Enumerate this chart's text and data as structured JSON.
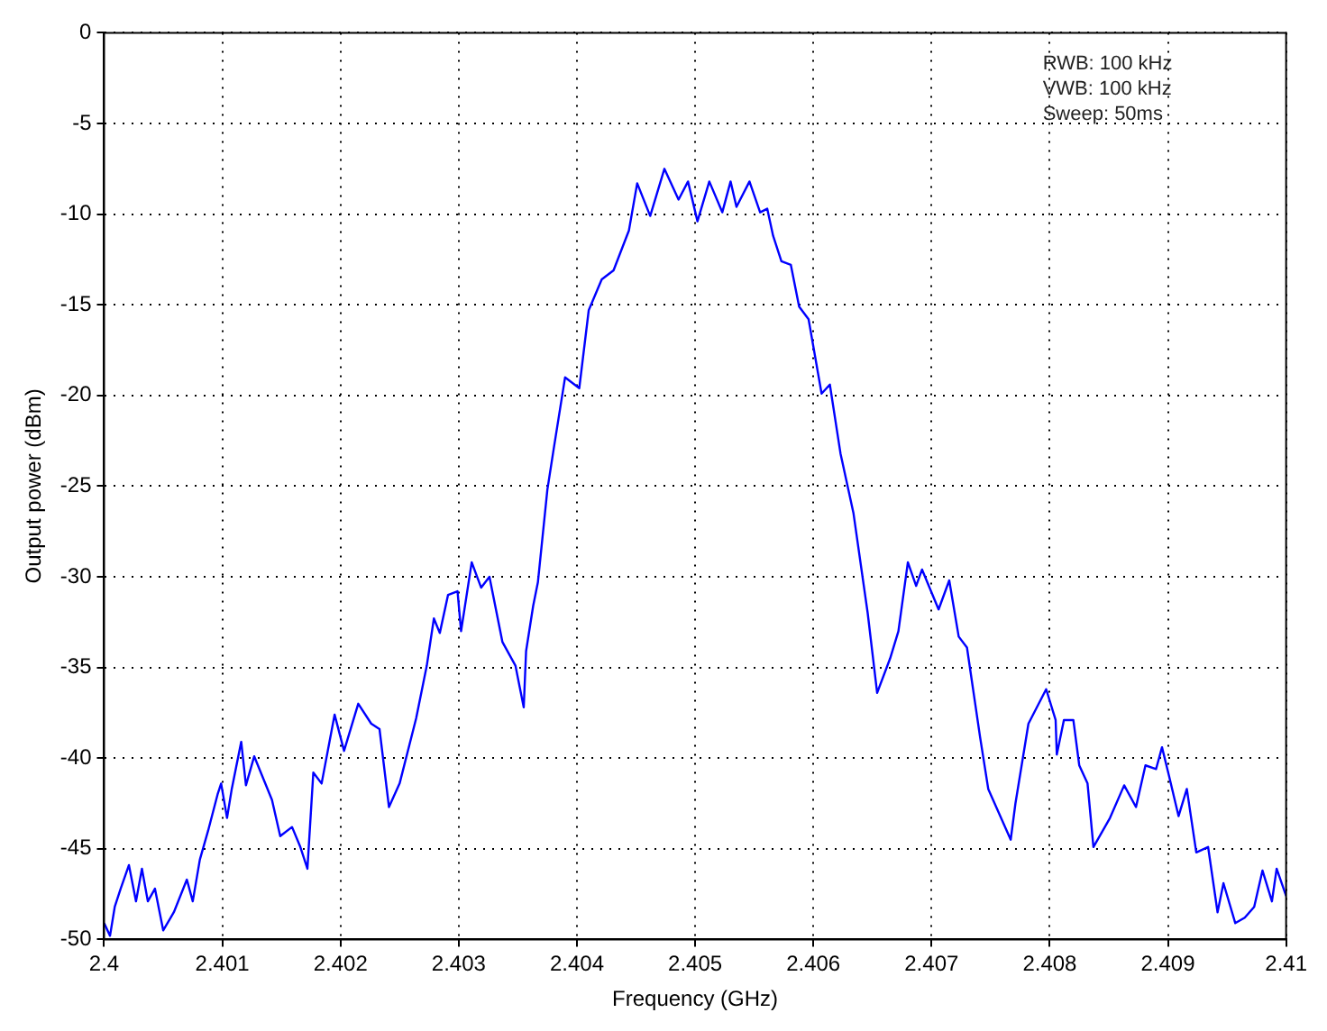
{
  "chart_data": {
    "type": "line",
    "xlabel": "Frequency (GHz)",
    "ylabel": "Output power (dBm)",
    "annotations": [
      "RWB: 100 kHz",
      "VWB: 100 kHz",
      "Sweep: 50ms"
    ],
    "xlim": [
      2.4,
      2.41
    ],
    "xticks": [
      2.4,
      2.401,
      2.402,
      2.403,
      2.404,
      2.405,
      2.406,
      2.407,
      2.408,
      2.409,
      2.41
    ],
    "ylim": [
      -50,
      0
    ],
    "yticks": [
      -50,
      -45,
      -40,
      -35,
      -30,
      -25,
      -20,
      -15,
      -10,
      -5,
      0
    ],
    "grid": true,
    "legend": false,
    "marker": "none",
    "line_style": "solid",
    "series": [
      {
        "color": "#0000ff",
        "x": [
          2.4,
          2.40005,
          2.40009,
          2.40014,
          2.40021,
          2.40027,
          2.40032,
          2.40037,
          2.40043,
          2.4005,
          2.40059,
          2.4007,
          2.40075,
          2.40081,
          2.40088,
          2.40096,
          2.40099,
          2.40104,
          2.40108,
          2.40116,
          2.4012,
          2.40127,
          2.40142,
          2.40149,
          2.40159,
          2.40166,
          2.40172,
          2.40177,
          2.40184,
          2.40195,
          2.40203,
          2.40215,
          2.40226,
          2.40233,
          2.40241,
          2.4025,
          2.40264,
          2.40273,
          2.40279,
          2.40284,
          2.40291,
          2.40299,
          2.40302,
          2.40311,
          2.40319,
          2.40326,
          2.40337,
          2.40348,
          2.40355,
          2.40357,
          2.40363,
          2.40367,
          2.40375,
          2.4038,
          2.4039,
          2.40402,
          2.4041,
          2.40421,
          2.40431,
          2.40444,
          2.40451,
          2.40462,
          2.40474,
          2.40486,
          2.40494,
          2.40502,
          2.40512,
          2.40523,
          2.4053,
          2.40535,
          2.40546,
          2.40555,
          2.40561,
          2.40566,
          2.40573,
          2.40581,
          2.40588,
          2.40596,
          2.40607,
          2.40614,
          2.40623,
          2.40634,
          2.40646,
          2.40654,
          2.40665,
          2.40672,
          2.4068,
          2.40687,
          2.40692,
          2.40706,
          2.40715,
          2.40723,
          2.4073,
          2.40741,
          2.40748,
          2.40767,
          2.40771,
          2.40782,
          2.40797,
          2.40805,
          2.40806,
          2.40812,
          2.4082,
          2.40825,
          2.40832,
          2.40837,
          2.40851,
          2.40863,
          2.40873,
          2.40881,
          2.4089,
          2.40895,
          2.40901,
          2.40909,
          2.40916,
          2.40924,
          2.40934,
          2.40942,
          2.40947,
          2.40957,
          2.40965,
          2.40973,
          2.4098,
          2.40988,
          2.40992,
          2.41
        ],
        "values": [
          -49.1,
          -49.8,
          -48.2,
          -47.2,
          -45.9,
          -47.9,
          -46.1,
          -47.9,
          -47.2,
          -49.5,
          -48.5,
          -46.7,
          -47.9,
          -45.6,
          -44.0,
          -42.0,
          -41.4,
          -43.3,
          -41.7,
          -39.1,
          -41.5,
          -39.9,
          -42.3,
          -44.3,
          -43.8,
          -44.9,
          -46.1,
          -40.8,
          -41.4,
          -37.6,
          -39.6,
          -37.0,
          -38.1,
          -38.4,
          -42.7,
          -41.4,
          -37.8,
          -34.9,
          -32.3,
          -33.1,
          -31.0,
          -30.8,
          -33.0,
          -29.2,
          -30.6,
          -30.0,
          -33.6,
          -34.9,
          -37.2,
          -34.1,
          -31.6,
          -30.3,
          -25.2,
          -23.1,
          -19.0,
          -19.6,
          -15.3,
          -13.6,
          -13.1,
          -10.9,
          -8.3,
          -10.1,
          -7.5,
          -9.2,
          -8.2,
          -10.4,
          -8.2,
          -9.9,
          -8.2,
          -9.6,
          -8.2,
          -9.9,
          -9.7,
          -11.2,
          -12.6,
          -12.8,
          -15.1,
          -15.8,
          -19.9,
          -19.4,
          -23.2,
          -26.5,
          -32.0,
          -36.4,
          -34.5,
          -33.0,
          -29.2,
          -30.5,
          -29.6,
          -31.8,
          -30.2,
          -33.3,
          -33.9,
          -38.8,
          -41.7,
          -44.5,
          -42.5,
          -38.1,
          -36.2,
          -37.9,
          -39.8,
          -37.9,
          -37.9,
          -40.4,
          -41.4,
          -44.9,
          -43.3,
          -41.5,
          -42.7,
          -40.4,
          -40.6,
          -39.4,
          -41.0,
          -43.2,
          -41.7,
          -45.2,
          -44.9,
          -48.5,
          -46.9,
          -49.1,
          -48.8,
          -48.2,
          -46.2,
          -47.9,
          -46.1,
          -47.6
        ]
      }
    ]
  }
}
